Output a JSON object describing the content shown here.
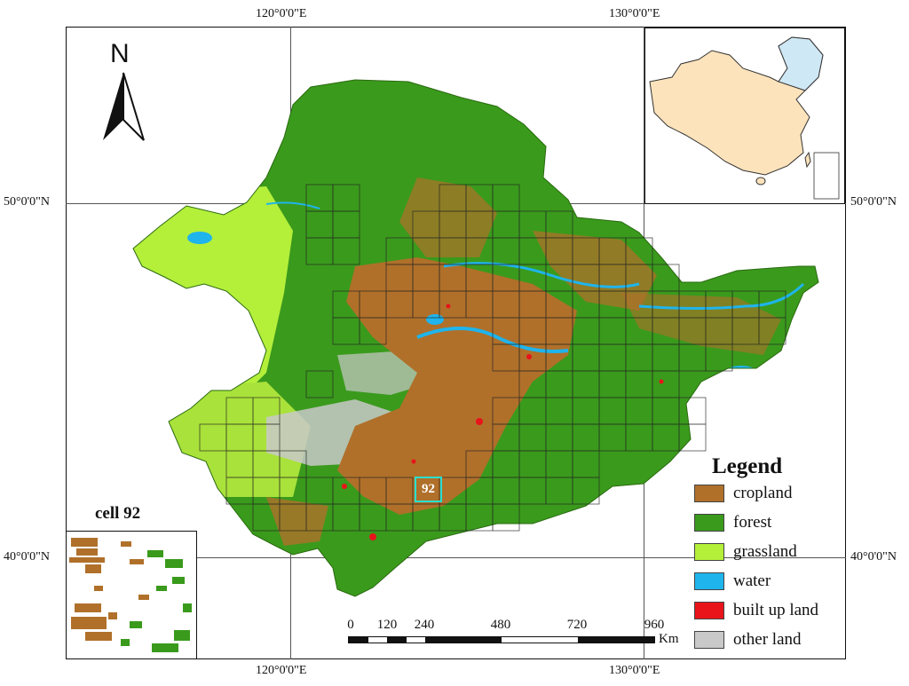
{
  "coordinates": {
    "top_longitudes": [
      "120°0'0\"E",
      "130°0'0\"E"
    ],
    "bottom_longitudes": [
      "120°0'0\"E",
      "130°0'0\"E"
    ],
    "left_latitudes": [
      "50°0'0\"N",
      "40°0'0\"N"
    ],
    "right_latitudes": [
      "50°0'0\"N",
      "40°0'0\"N"
    ]
  },
  "north_arrow": {
    "label": "N",
    "icon": "north-arrow-icon"
  },
  "legend": {
    "title": "Legend",
    "items": [
      {
        "label": "cropland",
        "color": "#b0702a"
      },
      {
        "label": "forest",
        "color": "#3a9a1c"
      },
      {
        "label": "grassland",
        "color": "#b4ef3a"
      },
      {
        "label": "water",
        "color": "#1fb4ec"
      },
      {
        "label": "built up land",
        "color": "#e8141a"
      },
      {
        "label": "other land",
        "color": "#c9c9c9"
      }
    ]
  },
  "scale_bar": {
    "labels": [
      "0",
      "120",
      "240",
      "480",
      "720",
      "960"
    ],
    "unit": "Km"
  },
  "cell_inset": {
    "title": "cell 92"
  },
  "highlight_cell": {
    "label": "92",
    "color": "#29e0d0"
  },
  "locator_map": {
    "country_color": "#fde3bb",
    "region_color": "#cfe8f6"
  }
}
